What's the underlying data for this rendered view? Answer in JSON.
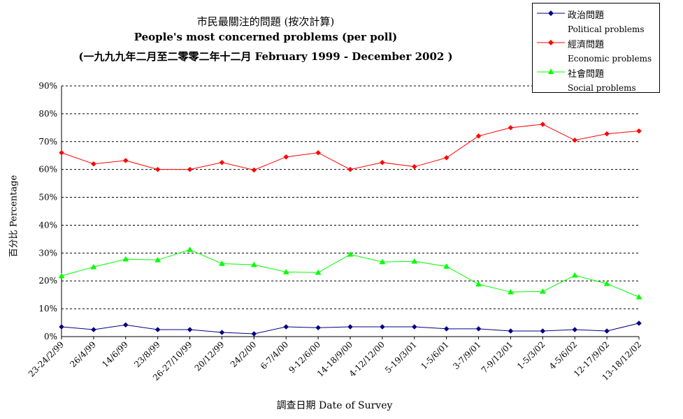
{
  "chart_data": {
    "type": "line",
    "title_zh": "市民最關注的問題 (按次計算)",
    "title_en": "People's most concerned problems  (per poll)",
    "title_range": "(一九九九年二月至二零零二年十二月 February 1999 - December 2002 )",
    "ylabel": "百分比 Percentage",
    "xlabel": "調查日期 Date of Survey",
    "ylim": [
      0,
      90
    ],
    "yticks": [
      "0%",
      "10%",
      "20%",
      "30%",
      "40%",
      "50%",
      "60%",
      "70%",
      "80%",
      "90%"
    ],
    "grid": "horizontal dashed",
    "legend_position": "top-right",
    "categories": [
      "23-24/2/99",
      "26/4/99",
      "14/6/99",
      "23/8/99",
      "26-27/10/99",
      "20/12/99",
      "24/2/00",
      "6-7/4/00",
      "9-12/6/00",
      "14-18/9/00",
      "4-12/12/00",
      "5-19/3/01",
      "1-5/6/01",
      "3-7/9/01",
      "7-9/12/01",
      "1-5/3/02",
      "4-5/6/02",
      "12-17/9/02",
      "13-18/12/02"
    ],
    "series": [
      {
        "name_zh": "政治問題",
        "name_en": "Political problems",
        "color": "#000080",
        "marker": "diamond",
        "values": [
          3.5,
          2.5,
          4.2,
          2.5,
          2.5,
          1.5,
          1.0,
          3.5,
          3.2,
          3.5,
          3.5,
          3.5,
          2.8,
          2.8,
          2.0,
          2.0,
          2.5,
          2.0,
          4.8
        ]
      },
      {
        "name_zh": "經濟問題",
        "name_en": "Economic problems",
        "color": "#ff0000",
        "marker": "diamond",
        "values": [
          66.0,
          62.0,
          63.2,
          60.0,
          60.0,
          62.5,
          59.8,
          64.5,
          66.0,
          60.0,
          62.5,
          61.0,
          64.2,
          72.0,
          75.0,
          76.2,
          70.5,
          72.8,
          73.8
        ]
      },
      {
        "name_zh": "社會問題",
        "name_en": "Social problems",
        "color": "#00ff00",
        "marker": "triangle",
        "values": [
          21.8,
          25.0,
          27.8,
          27.5,
          31.2,
          26.2,
          25.8,
          23.2,
          23.0,
          29.5,
          26.8,
          27.0,
          25.2,
          18.8,
          16.0,
          16.2,
          22.0,
          19.0,
          14.2
        ]
      }
    ]
  }
}
